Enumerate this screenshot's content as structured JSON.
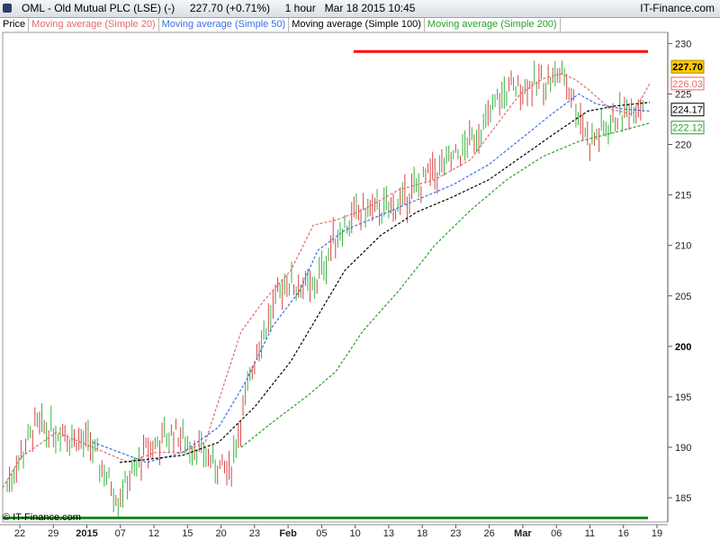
{
  "header": {
    "title": "OML - Old Mutual PLC (LSE) (-)     227.70 (+0.71%)     1 hour   Mar 18 2015 10:45",
    "brand": "IT-Finance.com"
  },
  "legend": {
    "price": "Price",
    "ma20": "Moving average (Simple 20)",
    "ma50": "Moving average (Simple 50)",
    "ma100": "Moving average (Simple 100)",
    "ma200": "Moving average (Simple 200)"
  },
  "copyright": "© IT-Finance.com",
  "colors": {
    "up": "#3cb043",
    "down": "#d64545",
    "ma20": "#e06a6a",
    "ma50": "#3a6ee8",
    "ma100": "#000000",
    "ma200": "#2aa02a",
    "resistance": "#ff0000",
    "support": "#1e8a1e"
  },
  "chart_data": {
    "type": "line",
    "ylim": [
      182.6,
      231.1
    ],
    "yticks": [
      185,
      190,
      195,
      200,
      205,
      210,
      215,
      220,
      225,
      230
    ],
    "x_tick_labels": [
      "22",
      "29",
      "2015",
      "07",
      "12",
      "15",
      "20",
      "23",
      "Feb",
      "05",
      "10",
      "13",
      "18",
      "23",
      "26",
      "Mar",
      "06",
      "11",
      "16",
      "19"
    ],
    "price_points": [
      [
        188.0,
        184.5
      ],
      [
        191.5,
        192.5
      ],
      [
        192.0,
        191.0
      ],
      [
        190.0,
        190.5
      ],
      [
        186.0,
        184.0
      ],
      [
        188.5,
        190.5
      ],
      [
        189.5,
        193.5
      ],
      [
        189.0,
        190.0
      ],
      [
        184.5,
        190.0
      ],
      [
        194.5,
        205.0
      ],
      [
        206.0,
        207.0
      ],
      [
        203.0,
        208.0
      ],
      [
        210.0,
        213.5
      ],
      [
        214.0,
        213.0
      ],
      [
        212.5,
        215.0
      ],
      [
        215.5,
        217.0
      ],
      [
        217.5,
        219.0
      ],
      [
        219.5,
        223.0
      ],
      [
        226.0,
        225.0
      ],
      [
        223.0,
        228.5
      ],
      [
        228.0,
        226.5
      ],
      [
        218.5,
        222.0
      ],
      [
        221.5,
        224.0
      ],
      [
        221.5,
        227.7
      ]
    ],
    "series": [
      {
        "name": "Moving average (Simple 20)",
        "values": [
          [
            0,
            186.0
          ],
          [
            20,
            189.0
          ],
          [
            60,
            191.5
          ],
          [
            100,
            190.0
          ],
          [
            140,
            188.5
          ],
          [
            170,
            189.5
          ],
          [
            200,
            189.5
          ],
          [
            225,
            190.5
          ],
          [
            245,
            196.0
          ],
          [
            265,
            201.5
          ],
          [
            290,
            204.5
          ],
          [
            320,
            207.5
          ],
          [
            345,
            212.0
          ],
          [
            370,
            212.5
          ],
          [
            400,
            213.5
          ],
          [
            440,
            215.5
          ],
          [
            480,
            216.5
          ],
          [
            520,
            218.5
          ],
          [
            545,
            221.5
          ],
          [
            575,
            225.0
          ],
          [
            600,
            226.5
          ],
          [
            620,
            227.0
          ],
          [
            635,
            226.5
          ],
          [
            650,
            225.5
          ],
          [
            675,
            223.5
          ],
          [
            700,
            223.0
          ],
          [
            719,
            226.03
          ]
        ]
      },
      {
        "name": "Moving average (Simple 50)",
        "values": [
          [
            100,
            190.5
          ],
          [
            130,
            189.5
          ],
          [
            160,
            188.5
          ],
          [
            200,
            189.5
          ],
          [
            240,
            192.0
          ],
          [
            270,
            196.5
          ],
          [
            300,
            202.0
          ],
          [
            330,
            205.5
          ],
          [
            350,
            209.5
          ],
          [
            380,
            211.5
          ],
          [
            420,
            213.0
          ],
          [
            460,
            214.5
          ],
          [
            500,
            216.0
          ],
          [
            540,
            218.0
          ],
          [
            575,
            220.5
          ],
          [
            610,
            223.0
          ],
          [
            640,
            225.0
          ],
          [
            660,
            224.0
          ],
          [
            690,
            223.5
          ],
          [
            719,
            223.3
          ]
        ]
      },
      {
        "name": "Moving average (Simple 100)",
        "values": [
          [
            130,
            188.5
          ],
          [
            160,
            188.8
          ],
          [
            200,
            189.2
          ],
          [
            240,
            190.5
          ],
          [
            280,
            194.0
          ],
          [
            320,
            198.5
          ],
          [
            350,
            203.0
          ],
          [
            380,
            207.5
          ],
          [
            420,
            211.0
          ],
          [
            460,
            213.3
          ],
          [
            500,
            214.8
          ],
          [
            540,
            216.5
          ],
          [
            580,
            219.0
          ],
          [
            620,
            221.5
          ],
          [
            650,
            223.3
          ],
          [
            680,
            223.8
          ],
          [
            719,
            224.17
          ]
        ]
      },
      {
        "name": "Moving average (Simple 200)",
        "values": [
          [
            265,
            190.0
          ],
          [
            300,
            192.5
          ],
          [
            340,
            195.2
          ],
          [
            370,
            197.5
          ],
          [
            400,
            201.5
          ],
          [
            440,
            205.5
          ],
          [
            480,
            210.0
          ],
          [
            520,
            213.5
          ],
          [
            560,
            216.5
          ],
          [
            600,
            218.8
          ],
          [
            640,
            220.3
          ],
          [
            680,
            221.2
          ],
          [
            719,
            222.12
          ]
        ]
      }
    ],
    "reference_lines": [
      {
        "name": "resistance",
        "y": 229.2,
        "x_from": 393,
        "x_to": 720
      },
      {
        "name": "support",
        "y": 183.0,
        "x_from": 3,
        "x_to": 720
      }
    ],
    "last_values": {
      "price": "227.70",
      "ma20": "226.03",
      "ma100": "224.17",
      "ma200": "222.12"
    }
  }
}
